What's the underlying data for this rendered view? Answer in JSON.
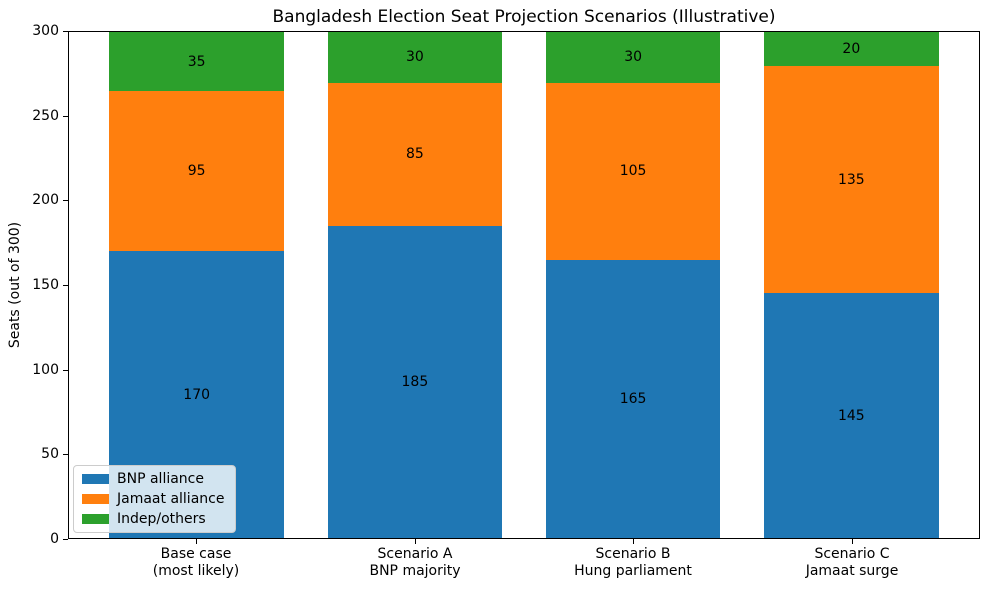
{
  "chart_data": {
    "type": "bar",
    "stacked": true,
    "title": "Bangladesh Election Seat Projection Scenarios (Illustrative)",
    "ylabel": "Seats (out of 300)",
    "xlabel": "",
    "categories": [
      "Base case\n(most likely)",
      "Scenario A\nBNP majority",
      "Scenario B\nHung parliament",
      "Scenario C\nJamaat surge"
    ],
    "series": [
      {
        "name": "BNP alliance",
        "color": "#1f77b4",
        "values": [
          170,
          185,
          165,
          145
        ]
      },
      {
        "name": "Jamaat alliance",
        "color": "#ff7f0e",
        "values": [
          95,
          85,
          105,
          135
        ]
      },
      {
        "name": "Indep/others",
        "color": "#2ca02c",
        "values": [
          35,
          30,
          30,
          20
        ]
      }
    ],
    "ylim": [
      0,
      300
    ],
    "yticks": [
      0,
      50,
      100,
      150,
      200,
      250,
      300
    ],
    "grid": false,
    "bar_value_labels": true,
    "legend_position": "lower left",
    "spine_color": "#000000",
    "background_color": "#ffffff"
  }
}
